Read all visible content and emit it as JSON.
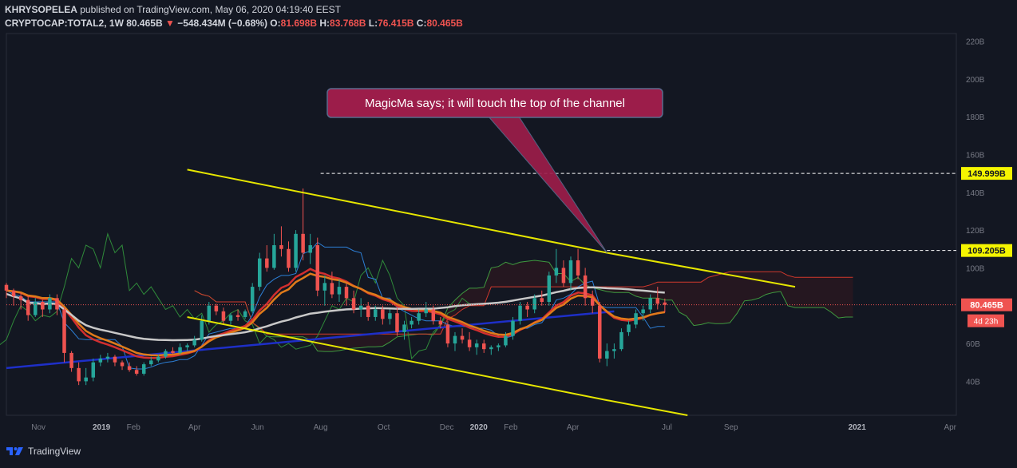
{
  "header": {
    "author": "KHRYSOPELEA",
    "published_text": "published on TradingView.com, May 06, 2020 04:19:40 EEST",
    "symbol": "CRYPTOCAP:TOTAL2, 1W",
    "last": "80.465B",
    "change": "−548.434M (−0.68%)",
    "o_label": "O:",
    "o": "81.698B",
    "h_label": "H:",
    "h": "83.768B",
    "l_label": "L:",
    "l": "76.415B",
    "c_label": "C:",
    "c": "80.465B",
    "down_arrow": "▼"
  },
  "footer": {
    "brand": "TradingView"
  },
  "colors": {
    "background": "#131722",
    "up": "#26a69a",
    "down": "#ef5350",
    "channel": "#e6e600",
    "ma200": "#c8c8c8",
    "ema_orange": "#e07b1a",
    "ema_red": "#d32f2f",
    "trend_blue": "#1e2fc8",
    "callout": "#9c1d4a"
  },
  "chart_data": {
    "type": "candlestick",
    "y_axis_ticks": [
      "220B",
      "200B",
      "180B",
      "160B",
      "140B",
      "120B",
      "100B",
      "80B",
      "60B",
      "40B"
    ],
    "y_tick_values": [
      220,
      200,
      180,
      160,
      140,
      120,
      100,
      80,
      60,
      40
    ],
    "ylim": [
      22,
      224
    ],
    "x_axis_ticks": [
      "Nov",
      "2019",
      "Feb",
      "Apr",
      "Jun",
      "Aug",
      "Oct",
      "Dec",
      "2020",
      "Feb",
      "Apr",
      "Jul",
      "Sep",
      "2021",
      "Apr"
    ],
    "x_tick_dates": [
      "2018-11-01",
      "2019-01-01",
      "2019-02-01",
      "2019-04-01",
      "2019-06-01",
      "2019-08-01",
      "2019-10-01",
      "2019-12-01",
      "2020-01-01",
      "2020-02-01",
      "2020-04-01",
      "2020-07-01",
      "2020-09-01",
      "2021-01-01",
      "2021-04-01"
    ],
    "xlim": [
      "2018-10-01",
      "2021-04-07"
    ],
    "price_labels": [
      {
        "value": 149.999,
        "text": "149.999B",
        "style": "yellow"
      },
      {
        "value": 109.205,
        "text": "109.205B",
        "style": "yellow"
      },
      {
        "value": 80.465,
        "text": "80.465B",
        "style": "red"
      }
    ],
    "countdown": "4d 23h",
    "annotation": {
      "text": "MagicMa says; it will touch the top of the channel",
      "target_date": "2020-05-04",
      "target_value": 108
    },
    "candles_weekly": {
      "start": "2018-10-01",
      "ohlc": [
        [
          91,
          92,
          84,
          88
        ],
        [
          88,
          89,
          80,
          85
        ],
        [
          85,
          87,
          78,
          83
        ],
        [
          83,
          85,
          72,
          75
        ],
        [
          75,
          84,
          74,
          82
        ],
        [
          82,
          83,
          74,
          78
        ],
        [
          78,
          86,
          76,
          84
        ],
        [
          84,
          86,
          75,
          78
        ],
        [
          78,
          79,
          50,
          55
        ],
        [
          55,
          56,
          45,
          47
        ],
        [
          47,
          50,
          38,
          40
        ],
        [
          40,
          47,
          38,
          42
        ],
        [
          42,
          52,
          40,
          50
        ],
        [
          50,
          54,
          48,
          52
        ],
        [
          52,
          55,
          50,
          53
        ],
        [
          53,
          54,
          48,
          50
        ],
        [
          50,
          51,
          46,
          48
        ],
        [
          48,
          50,
          45,
          46
        ],
        [
          46,
          48,
          43,
          44
        ],
        [
          44,
          50,
          43,
          49
        ],
        [
          49,
          53,
          48,
          51
        ],
        [
          51,
          54,
          50,
          53
        ],
        [
          53,
          57,
          52,
          56
        ],
        [
          56,
          58,
          54,
          55
        ],
        [
          55,
          60,
          54,
          58
        ],
        [
          58,
          60,
          56,
          59
        ],
        [
          59,
          64,
          58,
          62
        ],
        [
          62,
          75,
          61,
          72
        ],
        [
          72,
          82,
          70,
          80
        ],
        [
          80,
          81,
          75,
          77
        ],
        [
          77,
          79,
          70,
          72
        ],
        [
          72,
          76,
          70,
          75
        ],
        [
          75,
          78,
          72,
          74
        ],
        [
          74,
          78,
          73,
          77
        ],
        [
          77,
          92,
          76,
          90
        ],
        [
          90,
          108,
          88,
          105
        ],
        [
          105,
          112,
          98,
          100
        ],
        [
          100,
          118,
          99,
          112
        ],
        [
          112,
          122,
          106,
          110
        ],
        [
          110,
          114,
          98,
          100
        ],
        [
          100,
          120,
          98,
          118
        ],
        [
          118,
          142,
          104,
          108
        ],
        [
          108,
          118,
          102,
          112
        ],
        [
          112,
          116,
          85,
          88
        ],
        [
          88,
          96,
          80,
          92
        ],
        [
          92,
          98,
          84,
          86
        ],
        [
          86,
          94,
          82,
          90
        ],
        [
          90,
          92,
          80,
          84
        ],
        [
          84,
          88,
          76,
          78
        ],
        [
          78,
          84,
          74,
          80
        ],
        [
          80,
          82,
          72,
          74
        ],
        [
          74,
          80,
          72,
          78
        ],
        [
          78,
          80,
          70,
          73
        ],
        [
          73,
          78,
          70,
          76
        ],
        [
          76,
          79,
          64,
          66
        ],
        [
          66,
          72,
          62,
          70
        ],
        [
          70,
          74,
          68,
          72
        ],
        [
          72,
          78,
          70,
          76
        ],
        [
          76,
          82,
          74,
          78
        ],
        [
          78,
          80,
          70,
          72
        ],
        [
          72,
          74,
          68,
          70
        ],
        [
          70,
          72,
          58,
          60
        ],
        [
          60,
          66,
          56,
          64
        ],
        [
          64,
          68,
          60,
          62
        ],
        [
          62,
          66,
          56,
          58
        ],
        [
          58,
          62,
          54,
          60
        ],
        [
          60,
          62,
          55,
          57
        ],
        [
          57,
          59,
          54,
          58
        ],
        [
          58,
          60,
          56,
          59
        ],
        [
          59,
          66,
          58,
          64
        ],
        [
          64,
          74,
          62,
          72
        ],
        [
          72,
          82,
          70,
          80
        ],
        [
          80,
          82,
          74,
          78
        ],
        [
          78,
          86,
          76,
          84
        ],
        [
          84,
          88,
          80,
          82
        ],
        [
          82,
          98,
          80,
          96
        ],
        [
          96,
          110,
          92,
          100
        ],
        [
          100,
          104,
          90,
          92
        ],
        [
          92,
          106,
          88,
          104
        ],
        [
          104,
          110,
          94,
          96
        ],
        [
          96,
          100,
          80,
          84
        ],
        [
          84,
          88,
          76,
          80
        ],
        [
          80,
          82,
          50,
          52
        ],
        [
          52,
          60,
          48,
          56
        ],
        [
          56,
          60,
          52,
          57
        ],
        [
          57,
          68,
          56,
          66
        ],
        [
          66,
          72,
          64,
          70
        ],
        [
          70,
          78,
          68,
          76
        ],
        [
          76,
          80,
          72,
          78
        ],
        [
          78,
          86,
          76,
          84
        ],
        [
          84,
          90,
          78,
          81
        ],
        [
          81.698,
          83.768,
          76.415,
          80.465
        ]
      ]
    },
    "channel_top": [
      [
        "2019-03-25",
        152
      ],
      [
        "2020-05-04",
        108
      ],
      [
        "2020-11-02",
        90
      ]
    ],
    "channel_bottom": [
      [
        "2019-03-25",
        74
      ],
      [
        "2020-05-04",
        30
      ],
      [
        "2020-07-21",
        22
      ]
    ],
    "trend_blue": [
      [
        "2018-10-01",
        47
      ],
      [
        "2020-05-11",
        77
      ]
    ],
    "horizontal_levels": [
      {
        "value": 149.999,
        "from": "2019-08-01"
      },
      {
        "value": 109.205,
        "from": "2020-05-04"
      }
    ]
  }
}
